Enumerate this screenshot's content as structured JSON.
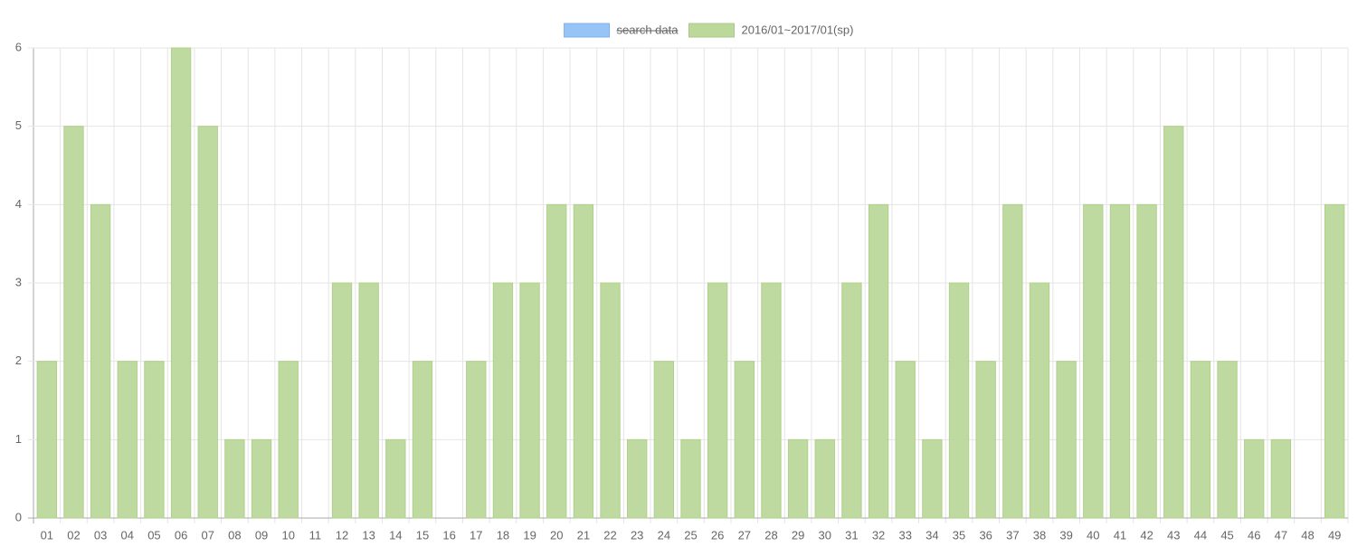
{
  "chart_data": {
    "type": "bar",
    "categories": [
      "01",
      "02",
      "03",
      "04",
      "05",
      "06",
      "07",
      "08",
      "09",
      "10",
      "11",
      "12",
      "13",
      "14",
      "15",
      "16",
      "17",
      "18",
      "19",
      "20",
      "21",
      "22",
      "23",
      "24",
      "25",
      "26",
      "27",
      "28",
      "29",
      "30",
      "31",
      "32",
      "33",
      "34",
      "35",
      "36",
      "37",
      "38",
      "39",
      "40",
      "41",
      "42",
      "43",
      "44",
      "45",
      "46",
      "47",
      "48",
      "49"
    ],
    "series": [
      {
        "name": "search data",
        "color": "#97c4f7",
        "hidden": true
      },
      {
        "name": "2016/01~2017/01(sp)",
        "color": "#bcd89b",
        "values": [
          2,
          5,
          4,
          2,
          2,
          6,
          5,
          1,
          1,
          2,
          0,
          3,
          3,
          1,
          2,
          0,
          2,
          3,
          3,
          4,
          4,
          3,
          1,
          2,
          1,
          3,
          2,
          3,
          1,
          1,
          3,
          4,
          2,
          1,
          3,
          2,
          4,
          3,
          2,
          4,
          4,
          4,
          5,
          2,
          2,
          1,
          1,
          0,
          4
        ]
      }
    ],
    "ylim": [
      0,
      6
    ],
    "yticks": [
      0,
      1,
      2,
      3,
      4,
      5,
      6
    ],
    "grid": true,
    "legend": "top"
  }
}
